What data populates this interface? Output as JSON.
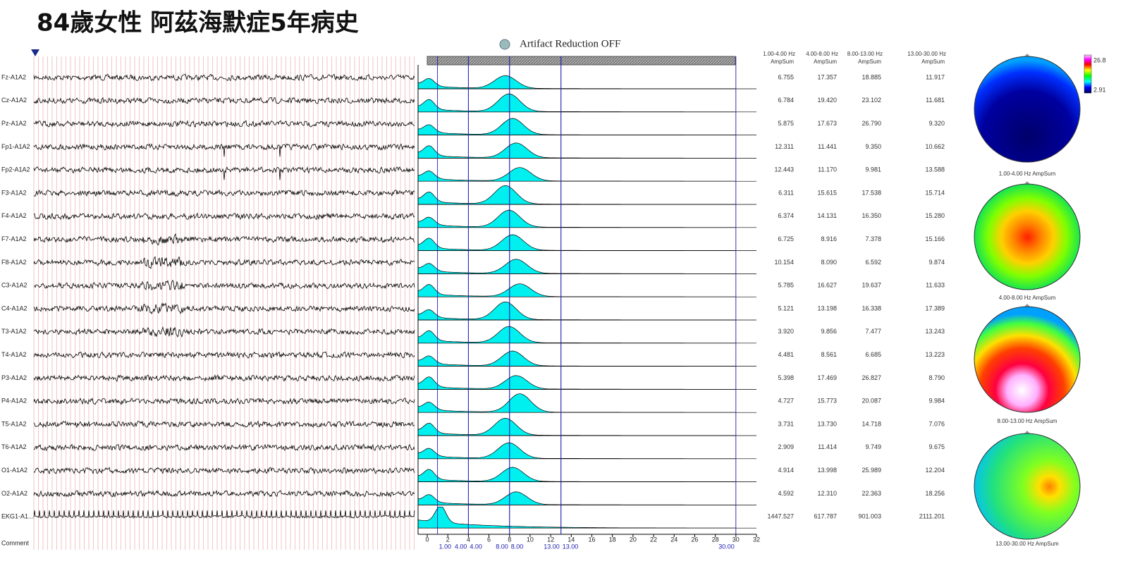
{
  "header": {
    "title": "84歲女性 阿茲海默症5年病史"
  },
  "toolbar": {
    "artifact": "Artifact Reduction OFF"
  },
  "eeg": {
    "channels": [
      "Fz-A1A2",
      "Cz-A1A2",
      "Pz-A1A2",
      "Fp1-A1A2",
      "Fp2-A1A2",
      "F3-A1A2",
      "F4-A1A2",
      "F7-A1A2",
      "F8-A1A2",
      "C3-A1A2",
      "C4-A1A2",
      "T3-A1A2",
      "T4-A1A2",
      "P3-A1A2",
      "P4-A1A2",
      "T5-A1A2",
      "T6-A1A2",
      "O1-A1A2",
      "O2-A1A2",
      "EKG1-A1..."
    ],
    "comment": "Comment"
  },
  "spectrum": {
    "xlim": [
      0,
      32
    ],
    "xticks": [
      0,
      2,
      4,
      6,
      8,
      10,
      12,
      14,
      16,
      18,
      20,
      22,
      24,
      26,
      28,
      30,
      32
    ],
    "bands": [
      {
        "start": {
          "value": 1,
          "label": "1.00"
        },
        "end": {
          "value": 4,
          "label": "4.00"
        }
      },
      {
        "start": {
          "value": 4,
          "label": "4.00"
        },
        "end": {
          "value": 8,
          "label": "8.00"
        }
      },
      {
        "start": {
          "value": 8,
          "label": "8.00"
        },
        "end": {
          "value": 13,
          "label": "13.00"
        }
      },
      {
        "start": {
          "value": 13,
          "label": "13.00"
        },
        "end": {
          "value": 30,
          "label": "30.00"
        }
      }
    ]
  },
  "table": {
    "headers": [
      [
        "1.00-4.00 Hz",
        "AmpSum"
      ],
      [
        "4.00-8.00 Hz",
        "AmpSum"
      ],
      [
        "8.00-13.00 Hz",
        "AmpSum"
      ],
      [
        "13.00-30.00 Hz",
        "AmpSum"
      ]
    ],
    "rows": [
      [
        "6.755",
        "17.357",
        "18.885",
        "11.917"
      ],
      [
        "6.784",
        "19.420",
        "23.102",
        "11.681"
      ],
      [
        "5.875",
        "17.673",
        "26.790",
        "9.320"
      ],
      [
        "12.311",
        "11.441",
        "9.350",
        "10.662"
      ],
      [
        "12.443",
        "11.170",
        "9.981",
        "13.588"
      ],
      [
        "6.311",
        "15.615",
        "17.538",
        "15.714"
      ],
      [
        "6.374",
        "14.131",
        "16.350",
        "15.280"
      ],
      [
        "6.725",
        "8.916",
        "7.378",
        "15.166"
      ],
      [
        "10.154",
        "8.090",
        "6.592",
        "9.874"
      ],
      [
        "5.785",
        "16.627",
        "19.637",
        "11.633"
      ],
      [
        "5.121",
        "13.198",
        "16.338",
        "17.389"
      ],
      [
        "3.920",
        "9.856",
        "7.477",
        "13.243"
      ],
      [
        "4.481",
        "8.561",
        "6.685",
        "13.223"
      ],
      [
        "5.398",
        "17.469",
        "26.827",
        "8.790"
      ],
      [
        "4.727",
        "15.773",
        "20.087",
        "9.984"
      ],
      [
        "3.731",
        "13.730",
        "14.718",
        "7.076"
      ],
      [
        "2.909",
        "11.414",
        "9.749",
        "9.675"
      ],
      [
        "4.914",
        "13.998",
        "25.989",
        "12.204"
      ],
      [
        "4.592",
        "12.310",
        "22.363",
        "18.256"
      ],
      [
        "1447.527",
        "617.787",
        "901.003",
        "2111.201"
      ]
    ]
  },
  "topomaps": {
    "labels": [
      "1.00-4.00 Hz AmpSum",
      "4.00-8.00 Hz AmpSum",
      "8.00-13.00 Hz AmpSum",
      "13.00-30.00 Hz AmpSum"
    ],
    "colorbar": {
      "max": "26.8",
      "min": "2.91"
    }
  }
}
